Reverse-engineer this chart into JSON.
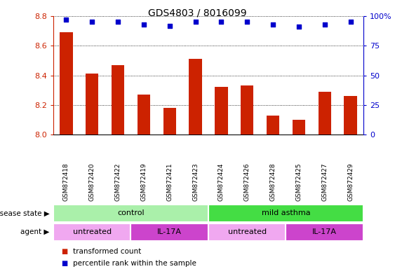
{
  "title": "GDS4803 / 8016099",
  "samples": [
    "GSM872418",
    "GSM872420",
    "GSM872422",
    "GSM872419",
    "GSM872421",
    "GSM872423",
    "GSM872424",
    "GSM872426",
    "GSM872428",
    "GSM872425",
    "GSM872427",
    "GSM872429"
  ],
  "bar_values": [
    8.69,
    8.41,
    8.47,
    8.27,
    8.18,
    8.51,
    8.32,
    8.33,
    8.13,
    8.1,
    8.29,
    8.26
  ],
  "percentile_values": [
    97,
    95,
    95,
    93,
    92,
    95,
    95,
    95,
    93,
    91,
    93,
    95
  ],
  "ylim_left": [
    8.0,
    8.8
  ],
  "ylim_right": [
    0,
    100
  ],
  "yticks_left": [
    8.0,
    8.2,
    8.4,
    8.6,
    8.8
  ],
  "yticks_right": [
    0,
    25,
    50,
    75,
    100
  ],
  "bar_color": "#cc2200",
  "percentile_color": "#0000cc",
  "grid_color": "#000000",
  "disease_state_groups": [
    {
      "label": "control",
      "start": 0,
      "end": 6,
      "color": "#aaf0aa"
    },
    {
      "label": "mild asthma",
      "start": 6,
      "end": 12,
      "color": "#44dd44"
    }
  ],
  "agent_groups": [
    {
      "label": "untreated",
      "start": 0,
      "end": 3,
      "color": "#f0a8f0"
    },
    {
      "label": "IL-17A",
      "start": 3,
      "end": 6,
      "color": "#cc44cc"
    },
    {
      "label": "untreated",
      "start": 6,
      "end": 9,
      "color": "#f0a8f0"
    },
    {
      "label": "IL-17A",
      "start": 9,
      "end": 12,
      "color": "#cc44cc"
    }
  ],
  "legend_items": [
    {
      "label": "transformed count",
      "color": "#cc2200"
    },
    {
      "label": "percentile rank within the sample",
      "color": "#0000cc"
    }
  ],
  "label_disease_state": "disease state",
  "label_agent": "agent",
  "bg_color": "#ffffff",
  "sample_bg_color": "#cccccc",
  "title_fontsize": 10,
  "bar_width": 0.5
}
